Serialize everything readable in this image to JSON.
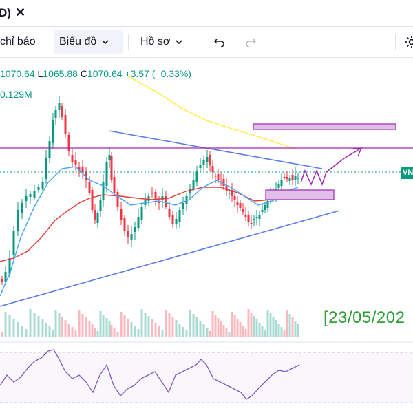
{
  "tab": {
    "title": "D)",
    "close_symbol": "✕"
  },
  "toolbar": {
    "indicators_label": "chỉ báo",
    "chart_label": "Biểu đồ",
    "profile_label": "Hồ sơ",
    "undo_icon": "undo-icon",
    "redo_icon": "redo-icon",
    "settings_icon": "gear-icon"
  },
  "legend": {
    "open_value": "1070.64",
    "low_key": "L",
    "low_value": "1065.88",
    "close_key": "C",
    "close_value": "1070.64",
    "change": "+3.57 (+0.33%)",
    "volume": "0.129M"
  },
  "price_tag": "VN",
  "annotation_date": "[23/05/202",
  "colors": {
    "up": "#089981",
    "down": "#f23645",
    "ma_blue": "#42a5f5",
    "ma_red": "#e53935",
    "ma_yellow": "#ffeb3b",
    "trendline": "#5b7ce8",
    "resistance": "#9c27b0",
    "zone_fill": "#e1bee7",
    "rsi": "#7e57c2",
    "date_text": "#2e9e38"
  },
  "chart_data": {
    "type": "candlestick",
    "visible_price_readouts": {
      "low": 1065.88,
      "close": 1070.64,
      "change": 3.57,
      "change_pct": 0.33
    },
    "volume_readout": "0.129M",
    "overlays": [
      "moving-average-blue",
      "moving-average-red",
      "moving-average-yellow",
      "descending-trendline",
      "ascending-trendline",
      "horizontal-resistance",
      "supply-zone",
      "demand-zone",
      "projection-path"
    ],
    "lower_pane": "rsi"
  }
}
